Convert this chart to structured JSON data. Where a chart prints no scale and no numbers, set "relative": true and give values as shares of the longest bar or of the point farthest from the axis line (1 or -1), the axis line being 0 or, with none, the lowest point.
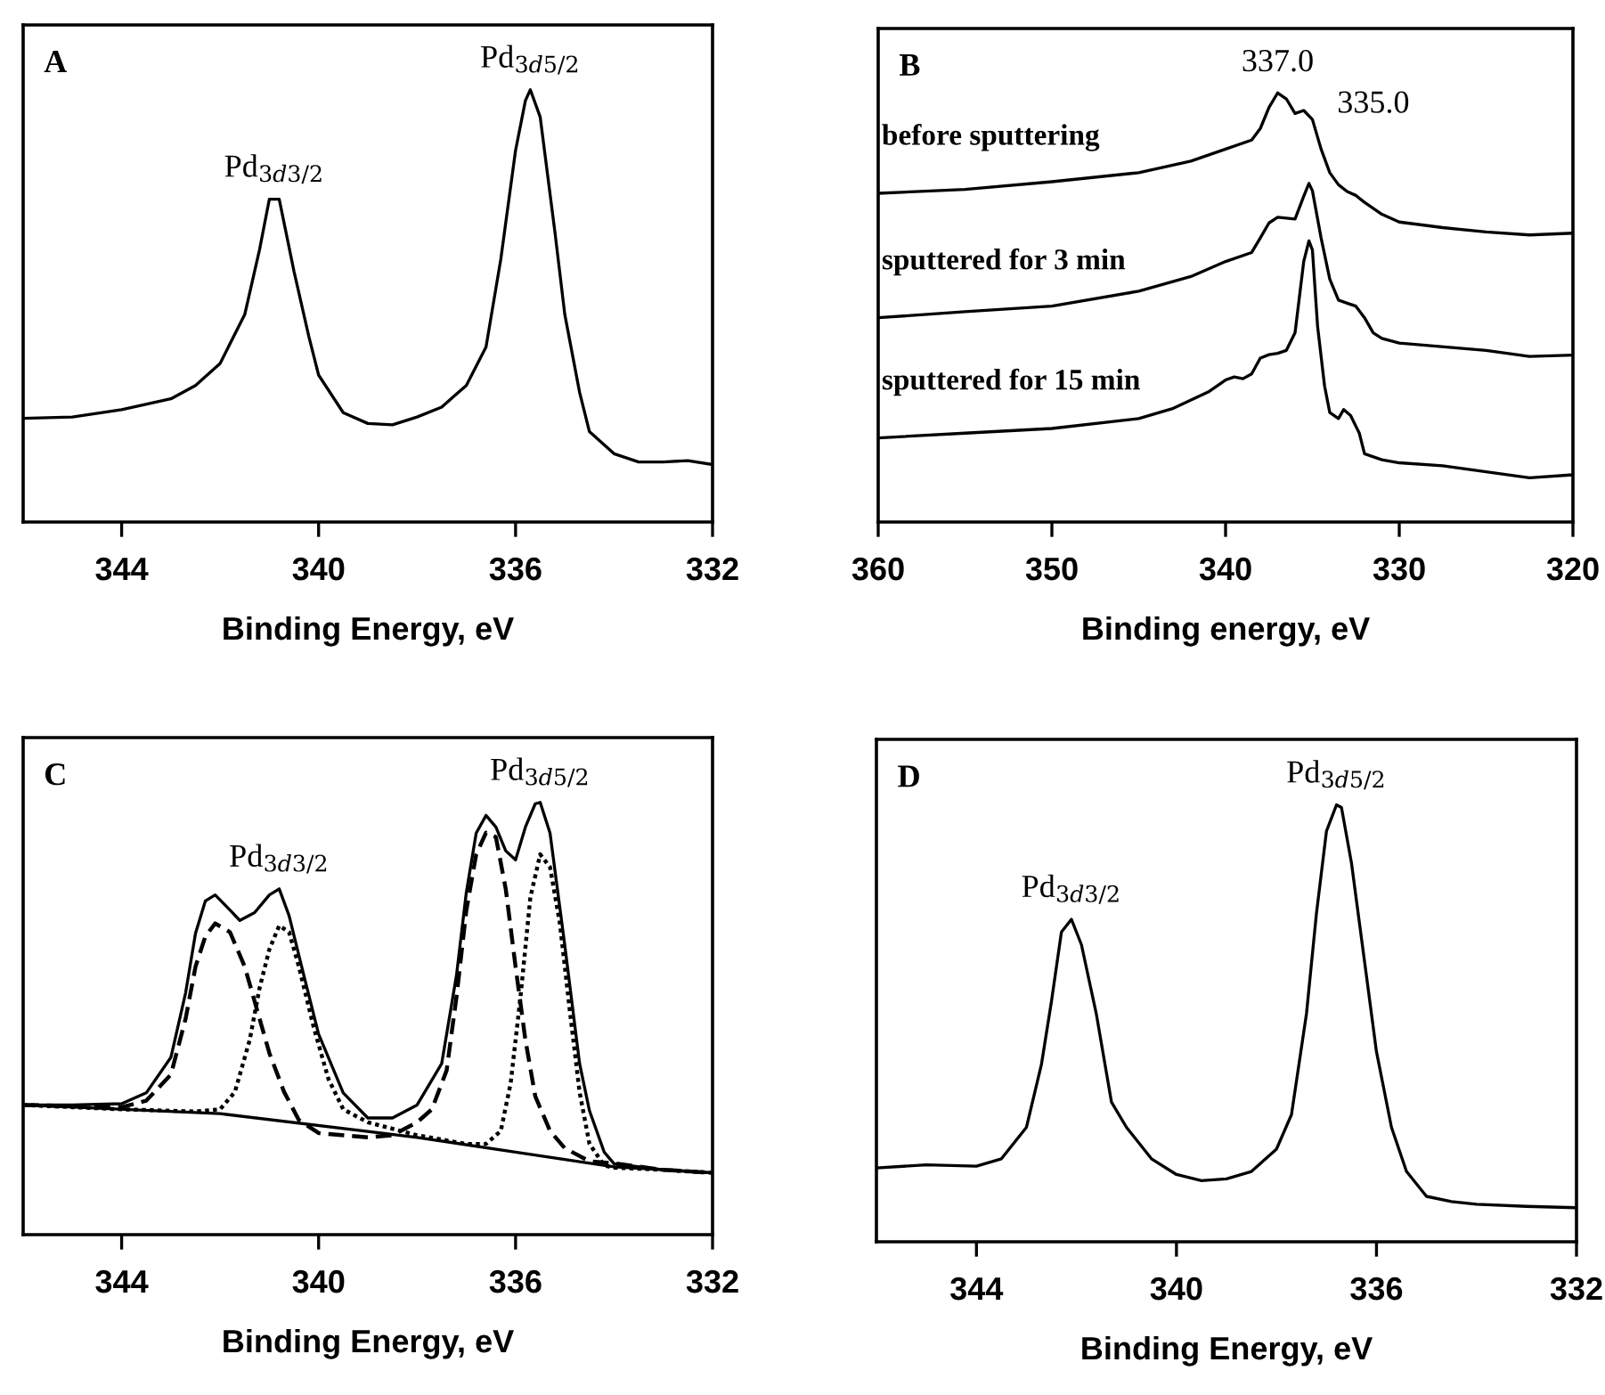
{
  "chart_data": [
    {
      "type": "line",
      "title": "A",
      "xlabel": "Binding Energy, eV",
      "relative": true,
      "xlim": [
        346,
        332
      ],
      "xticks": [
        344,
        340,
        336,
        332
      ],
      "marker": "none",
      "legend": false,
      "series": [
        {
          "color": "#000000",
          "line_style": "solid",
          "x": [
            346,
            345,
            344,
            343,
            342.5,
            342,
            341.5,
            341.2,
            341.0,
            340.8,
            340.5,
            340.2,
            340,
            339.5,
            339,
            338.5,
            338,
            337.5,
            337,
            336.6,
            336.3,
            336.0,
            335.8,
            335.7,
            335.5,
            335.2,
            335,
            334.7,
            334.5,
            334,
            333.5,
            333,
            332.5,
            332
          ],
          "values": [
            0.24,
            0.243,
            0.26,
            0.285,
            0.316,
            0.367,
            0.48,
            0.63,
            0.747,
            0.747,
            0.58,
            0.43,
            0.34,
            0.253,
            0.228,
            0.225,
            0.243,
            0.266,
            0.316,
            0.405,
            0.608,
            0.86,
            0.975,
            1.0,
            0.937,
            0.67,
            0.48,
            0.3,
            0.209,
            0.158,
            0.139,
            0.139,
            0.142,
            0.133
          ]
        }
      ],
      "annotations": [
        {
          "text": "Pd$_{3d3/2}$",
          "x": 340.9,
          "y": 0.747
        },
        {
          "text": "Pd$_{3d5/2}$",
          "x": 335.7,
          "y": 1.0
        }
      ]
    },
    {
      "type": "line",
      "title": "B",
      "xlabel": "Binding energy, eV",
      "relative": true,
      "xlim": [
        360,
        320
      ],
      "xticks": [
        360,
        350,
        340,
        330,
        320
      ],
      "marker": "none",
      "legend": false,
      "series": [
        {
          "name": "before sputtering",
          "color": "#000000",
          "line_style": "solid",
          "x": [
            360,
            355,
            350,
            345,
            342,
            340,
            338.5,
            338,
            337.5,
            337,
            336.5,
            336,
            335.5,
            335,
            334.5,
            334,
            333.5,
            333,
            332.5,
            332,
            331,
            330,
            327.5,
            325,
            322.5,
            320
          ],
          "values": [
            0.766,
            0.775,
            0.793,
            0.814,
            0.841,
            0.869,
            0.89,
            0.917,
            0.966,
            1.0,
            0.986,
            0.952,
            0.959,
            0.938,
            0.869,
            0.814,
            0.786,
            0.77,
            0.761,
            0.745,
            0.717,
            0.699,
            0.686,
            0.676,
            0.669,
            0.673
          ]
        },
        {
          "name": "sputtered for 3 min",
          "color": "#000000",
          "line_style": "solid",
          "x": [
            360,
            355,
            350,
            345,
            342,
            340,
            338.5,
            338,
            337.5,
            337,
            336,
            335.5,
            335.2,
            335,
            334.5,
            334,
            333.5,
            333,
            332.5,
            332,
            331.5,
            331,
            330,
            325,
            322.5,
            320
          ],
          "values": [
            0.476,
            0.49,
            0.503,
            0.538,
            0.572,
            0.607,
            0.628,
            0.662,
            0.697,
            0.71,
            0.706,
            0.759,
            0.789,
            0.772,
            0.662,
            0.566,
            0.517,
            0.51,
            0.503,
            0.476,
            0.441,
            0.428,
            0.417,
            0.4,
            0.386,
            0.389
          ]
        },
        {
          "name": "sputtered for 15 min",
          "color": "#000000",
          "line_style": "solid",
          "x": [
            360,
            355,
            350,
            345,
            343,
            341,
            340,
            339.5,
            339,
            338.5,
            338,
            337.5,
            337,
            336.5,
            336,
            335.5,
            335.2,
            335,
            334.7,
            334.3,
            334,
            333.5,
            333.2,
            332.8,
            332.3,
            332,
            331,
            330,
            327.5,
            325,
            322.5,
            320
          ],
          "values": [
            0.196,
            0.207,
            0.218,
            0.241,
            0.265,
            0.303,
            0.331,
            0.338,
            0.334,
            0.345,
            0.382,
            0.39,
            0.393,
            0.4,
            0.441,
            0.607,
            0.655,
            0.634,
            0.455,
            0.317,
            0.255,
            0.241,
            0.262,
            0.248,
            0.207,
            0.159,
            0.145,
            0.138,
            0.131,
            0.117,
            0.103,
            0.11
          ]
        }
      ],
      "annotations": [
        {
          "text": "337.0",
          "x": 337,
          "y": 1.0
        },
        {
          "text": "335.0",
          "x": 335,
          "y": 0.938
        }
      ]
    },
    {
      "type": "line",
      "title": "C",
      "xlabel": "Binding Energy, eV",
      "relative": true,
      "xlim": [
        346,
        332
      ],
      "xticks": [
        344,
        340,
        336,
        332
      ],
      "marker": "none",
      "legend": false,
      "series": [
        {
          "color": "#000000",
          "line_style": "solid",
          "x": [
            346,
            345,
            344,
            343.5,
            343,
            342.7,
            342.5,
            342.3,
            342.1,
            341.8,
            341.6,
            341.3,
            341.0,
            340.8,
            340.6,
            340.3,
            340,
            339.5,
            339,
            338.5,
            338,
            337.5,
            337.2,
            337,
            336.8,
            336.6,
            336.4,
            336.2,
            336.0,
            335.8,
            335.6,
            335.5,
            335.3,
            335,
            334.7,
            334.5,
            334.2,
            334,
            333,
            332
          ],
          "values": [
            0.3,
            0.3,
            0.303,
            0.328,
            0.41,
            0.56,
            0.697,
            0.772,
            0.786,
            0.751,
            0.727,
            0.745,
            0.786,
            0.8,
            0.738,
            0.6,
            0.464,
            0.328,
            0.27,
            0.27,
            0.3,
            0.396,
            0.6,
            0.792,
            0.929,
            0.97,
            0.943,
            0.888,
            0.867,
            0.943,
            0.997,
            1.0,
            0.929,
            0.669,
            0.396,
            0.287,
            0.191,
            0.164,
            0.15,
            0.143
          ]
        },
        {
          "color": "#000000",
          "line_style": "solid",
          "x": [
            346,
            342,
            338,
            336,
            334,
            332
          ],
          "values": [
            0.3,
            0.28,
            0.225,
            0.191,
            0.157,
            0.143
          ]
        },
        {
          "color": "#000000",
          "line_style": "dashed",
          "x": [
            346,
            344,
            343.5,
            343,
            342.7,
            342.5,
            342.3,
            342.1,
            341.8,
            341.5,
            341.2,
            341,
            340.7,
            340.4,
            340,
            339,
            338.5,
            338,
            337.7,
            337.4,
            337.2,
            337,
            336.8,
            336.6,
            336.4,
            336.2,
            336,
            335.8,
            335.6,
            335.3,
            335,
            334.5,
            334,
            333,
            332
          ],
          "values": [
            0.3,
            0.295,
            0.31,
            0.37,
            0.5,
            0.62,
            0.69,
            0.72,
            0.7,
            0.62,
            0.5,
            0.42,
            0.33,
            0.265,
            0.235,
            0.225,
            0.23,
            0.26,
            0.29,
            0.38,
            0.55,
            0.75,
            0.88,
            0.93,
            0.92,
            0.8,
            0.62,
            0.45,
            0.32,
            0.24,
            0.2,
            0.17,
            0.165,
            0.15,
            0.143
          ]
        },
        {
          "color": "#000000",
          "line_style": "dotted",
          "x": [
            346,
            344,
            342.5,
            342,
            341.7,
            341.4,
            341.2,
            341,
            340.8,
            340.6,
            340.4,
            340.1,
            339.8,
            339.5,
            339,
            338,
            337,
            336.6,
            336.3,
            336.1,
            335.9,
            335.7,
            335.5,
            335.3,
            335.1,
            334.9,
            334.7,
            334.5,
            334.2,
            334,
            333,
            332
          ],
          "values": [
            0.3,
            0.29,
            0.285,
            0.29,
            0.33,
            0.45,
            0.57,
            0.66,
            0.715,
            0.7,
            0.62,
            0.48,
            0.36,
            0.29,
            0.26,
            0.23,
            0.21,
            0.21,
            0.24,
            0.35,
            0.55,
            0.78,
            0.88,
            0.85,
            0.72,
            0.52,
            0.33,
            0.21,
            0.16,
            0.155,
            0.15,
            0.143
          ]
        }
      ],
      "annotations": [
        {
          "text": "Pd$_{3d3/2}$",
          "x": 340.8,
          "y": 0.8
        },
        {
          "text": "Pd$_{3d5/2}$",
          "x": 335.5,
          "y": 1.0
        }
      ]
    },
    {
      "type": "line",
      "title": "D",
      "xlabel": "Binding Energy, eV",
      "relative": true,
      "xlim": [
        346,
        332
      ],
      "xticks": [
        344,
        340,
        336,
        332
      ],
      "marker": "none",
      "legend": false,
      "series": [
        {
          "color": "#000000",
          "line_style": "solid",
          "x": [
            346,
            345,
            344,
            343.5,
            343,
            342.7,
            342.5,
            342.3,
            342.1,
            341.9,
            341.6,
            341.3,
            341,
            340.5,
            340,
            339.5,
            339,
            338.5,
            338,
            337.7,
            337.4,
            337.2,
            337,
            336.8,
            336.7,
            336.5,
            336.2,
            336,
            335.7,
            335.4,
            335,
            334.5,
            334,
            333,
            332
          ],
          "values": [
            0.169,
            0.176,
            0.173,
            0.19,
            0.262,
            0.406,
            0.55,
            0.709,
            0.738,
            0.68,
            0.52,
            0.32,
            0.262,
            0.19,
            0.154,
            0.14,
            0.144,
            0.161,
            0.212,
            0.291,
            0.522,
            0.752,
            0.94,
            1.0,
            0.994,
            0.867,
            0.608,
            0.435,
            0.262,
            0.161,
            0.104,
            0.092,
            0.086,
            0.081,
            0.078
          ]
        }
      ],
      "annotations": [
        {
          "text": "Pd$_{3d3/2}$",
          "x": 342.1,
          "y": 0.738
        },
        {
          "text": "Pd$_{3d5/2}$",
          "x": 336.8,
          "y": 1.0
        }
      ]
    }
  ]
}
